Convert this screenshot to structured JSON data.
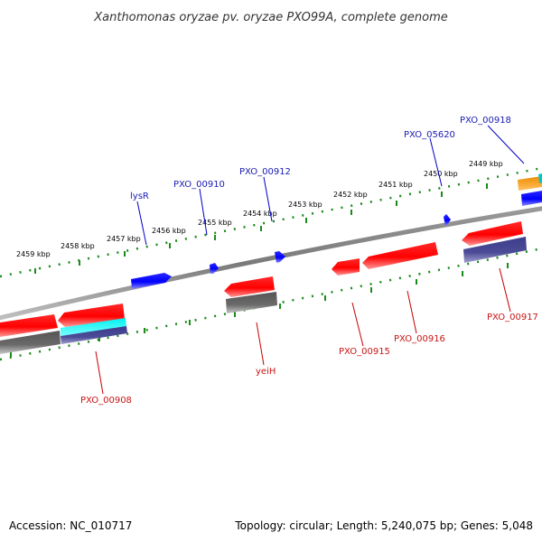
{
  "title": "Xanthomonas oryzae pv. oryzae PXO99A, complete genome",
  "footer": {
    "accession": "Accession: NC_010717",
    "summary": "Topology: circular; Length: 5,240,075 bp; Genes: 5,048"
  },
  "colors": {
    "backbone": "#808080",
    "forward_cds": "#0000ff",
    "reverse_cds": "#ff0000",
    "forward_label": "#1a1ab4",
    "reverse_label": "#c81414",
    "tick_forward": "#1a8a1a",
    "tick_reverse": "#1a8a1a",
    "cog_gray": "#666666",
    "cog_navy": "#4b4b96",
    "cog_cyan": "#00e0e0",
    "cog_orange": "#f08c00"
  },
  "scale_ticks": [
    "2459 kbp",
    "2458 kbp",
    "2457 kbp",
    "2456 kbp",
    "2455 kbp",
    "2454 kbp",
    "2453 kbp",
    "2452 kbp",
    "2451 kbp",
    "2450 kbp",
    "2449 kbp"
  ],
  "forward_gene_labels": [
    "lysR",
    "PXO_00910",
    "PXO_00912",
    "PXO_05620",
    "PXO_00918"
  ],
  "reverse_gene_labels": [
    "PXO_00908",
    "yeiH",
    "PXO_00915",
    "PXO_00916",
    "PXO_00917"
  ]
}
